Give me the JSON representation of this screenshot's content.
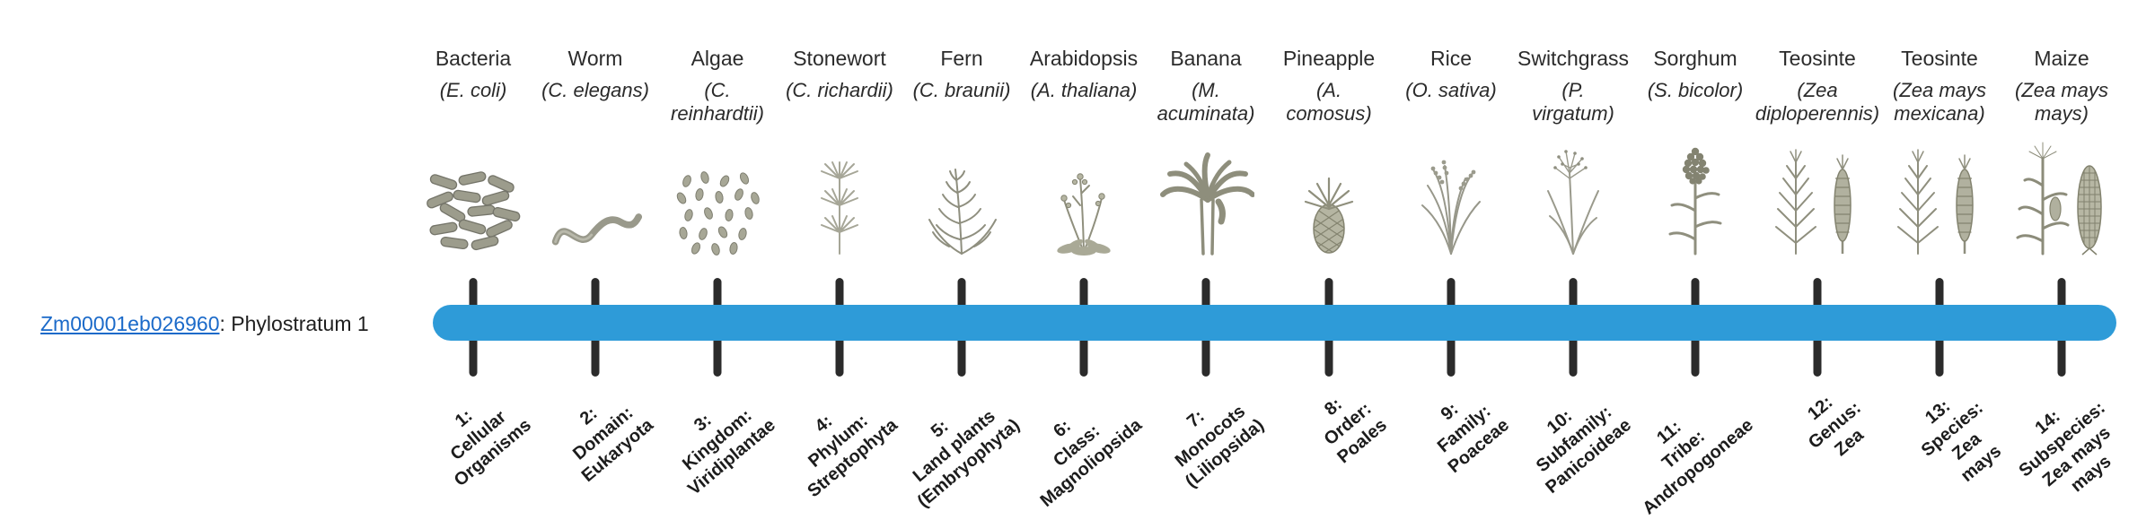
{
  "colors": {
    "link_color": "#1B6AC9",
    "text_color": "#2B2B2B"
  },
  "gene_label": {
    "gene_id": "Zm00001eb026960",
    "suffix": ": Phylostratum 1"
  },
  "timeline": {
    "bar_color": "#2E9BD8",
    "tick_color": "#2B2B2B"
  },
  "strata": [
    {
      "common_name": "Bacteria",
      "scientific_name": "(E. coli)",
      "icon": "bacteria",
      "stratum_label": "1:\nCellular\nOrganisms"
    },
    {
      "common_name": "Worm",
      "scientific_name": "(C. elegans)",
      "icon": "worm",
      "stratum_label": "2:\nDomain:\nEukaryota"
    },
    {
      "common_name": "Algae",
      "scientific_name": "(C.\nreinhardtii)",
      "icon": "algae",
      "stratum_label": "3:\nKingdom:\nViridiplantae"
    },
    {
      "common_name": "Stonewort",
      "scientific_name": "(C. richardii)",
      "icon": "stonewort",
      "stratum_label": "4:\nPhylum:\nStreptophyta"
    },
    {
      "common_name": "Fern",
      "scientific_name": "(C. braunii)",
      "icon": "fern",
      "stratum_label": "5:\nLand plants\n(Embryophyta)"
    },
    {
      "common_name": "Arabidopsis",
      "scientific_name": "(A. thaliana)",
      "icon": "arabidopsis",
      "stratum_label": "6:\nClass:\nMagnoliopsida"
    },
    {
      "common_name": "Banana",
      "scientific_name": "(M.\nacuminata)",
      "icon": "banana",
      "stratum_label": "7:\nMonocots\n(Liliopsida)"
    },
    {
      "common_name": "Pineapple",
      "scientific_name": "(A.\ncomosus)",
      "icon": "pineapple",
      "stratum_label": "8:\nOrder:\nPoales"
    },
    {
      "common_name": "Rice",
      "scientific_name": "(O. sativa)",
      "icon": "rice",
      "stratum_label": "9:\nFamily:\nPoaceae"
    },
    {
      "common_name": "Switchgrass",
      "scientific_name": "(P.\nvirgatum)",
      "icon": "switchgrass",
      "stratum_label": "10:\nSubfamily:\nPanicoideae"
    },
    {
      "common_name": "Sorghum",
      "scientific_name": "(S. bicolor)",
      "icon": "sorghum",
      "stratum_label": "11:\nTribe:\nAndropogoneae"
    },
    {
      "common_name": "Teosinte",
      "scientific_name": "(Zea\ndiploperennis)",
      "icon": "teosinte",
      "stratum_label": "12:\nGenus:\nZea"
    },
    {
      "common_name": "Teosinte",
      "scientific_name": "(Zea mays\nmexicana)",
      "icon": "teosinte",
      "stratum_label": "13:\nSpecies:\nZea\nmays"
    },
    {
      "common_name": "Maize",
      "scientific_name": "(Zea mays\nmays)",
      "icon": "maize",
      "stratum_label": "14:\nSubspecies:\nZea mays\nmays"
    }
  ]
}
